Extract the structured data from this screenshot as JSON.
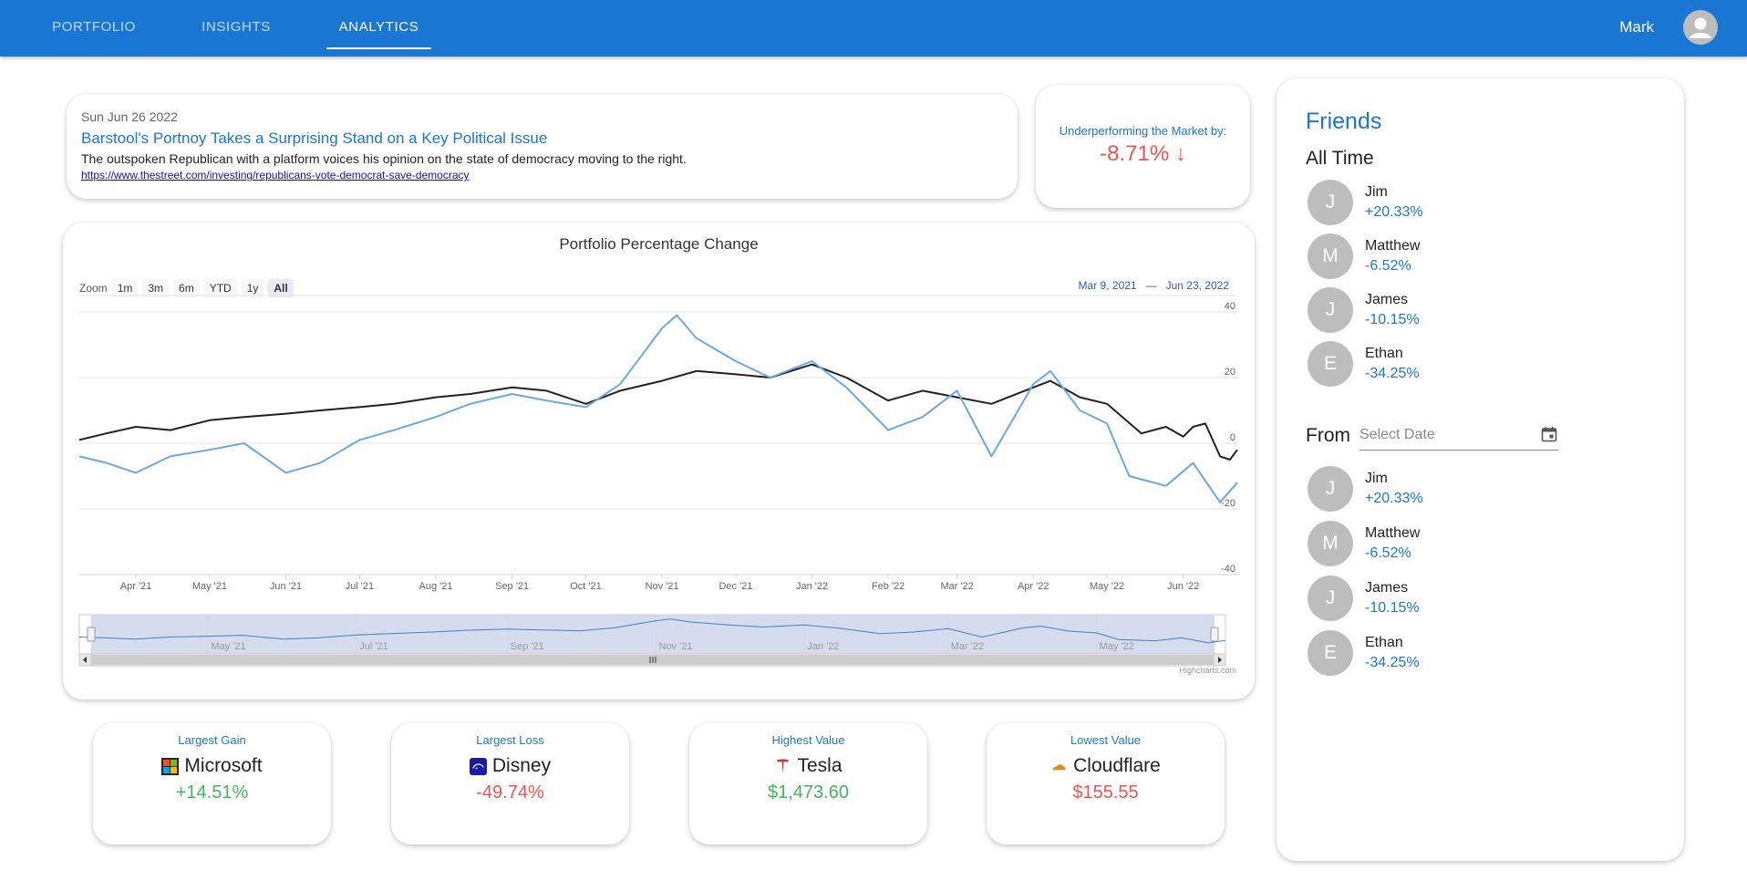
{
  "nav": {
    "tabs": [
      {
        "label": "PORTFOLIO"
      },
      {
        "label": "INSIGHTS"
      },
      {
        "label": "ANALYTICS"
      }
    ],
    "active": "ANALYTICS",
    "user_name": "Mark"
  },
  "news": {
    "date": "Sun Jun 26 2022",
    "title": "Barstool's Portnoy Takes a Surprising Stand on a Key Political Issue",
    "description": "The outspoken Republican with a platform voices his opinion on the state of democracy moving to the right.",
    "url": "https://www.thestreet.com/investing/republicans-vote-democrat-save-democracy"
  },
  "underperform": {
    "label": "Underperforming the Market by:",
    "value": "-8.71%",
    "arrow": "↓"
  },
  "chart": {
    "zoom_label": "Zoom",
    "zoom_buttons": [
      "1m",
      "3m",
      "6m",
      "YTD",
      "1y",
      "All"
    ],
    "zoom_selected": "All",
    "range_from": "Mar 9, 2021",
    "range_to": "Jun 23, 2022",
    "credits": "Highcharts.com"
  },
  "chart_data": {
    "type": "line",
    "title": "Portfolio Percentage Change",
    "x_tick_labels": [
      "Apr '21",
      "May '21",
      "Jun '21",
      "Jul '21",
      "Aug '21",
      "Sep '21",
      "Oct '21",
      "Nov '21",
      "Dec '21",
      "Jan '22",
      "Feb '22",
      "Mar '22",
      "Apr '22",
      "May '22",
      "Jun '22"
    ],
    "navigator_tick_labels": [
      "May '21",
      "Jul '21",
      "Sep '21",
      "Nov '21",
      "Jan '22",
      "Mar '22",
      "May '22"
    ],
    "y_ticks": [
      40,
      20,
      0,
      -20,
      -40
    ],
    "ylim": [
      -40,
      45
    ],
    "xlim": [
      "2021-03-09",
      "2022-06-23"
    ],
    "grid": true,
    "series": [
      {
        "color": "#222222",
        "points": [
          [
            "2021-03-09",
            1
          ],
          [
            "2021-03-20",
            3
          ],
          [
            "2021-04-01",
            5
          ],
          [
            "2021-04-15",
            4
          ],
          [
            "2021-05-01",
            7
          ],
          [
            "2021-05-15",
            8
          ],
          [
            "2021-06-01",
            9
          ],
          [
            "2021-06-15",
            10
          ],
          [
            "2021-07-01",
            11
          ],
          [
            "2021-07-15",
            12
          ],
          [
            "2021-08-01",
            14
          ],
          [
            "2021-08-15",
            15
          ],
          [
            "2021-09-01",
            17
          ],
          [
            "2021-09-15",
            16
          ],
          [
            "2021-10-01",
            12
          ],
          [
            "2021-10-15",
            16
          ],
          [
            "2021-11-01",
            19
          ],
          [
            "2021-11-15",
            22
          ],
          [
            "2021-12-01",
            21
          ],
          [
            "2021-12-15",
            20
          ],
          [
            "2022-01-01",
            24
          ],
          [
            "2022-01-15",
            20
          ],
          [
            "2022-02-01",
            13
          ],
          [
            "2022-02-15",
            16
          ],
          [
            "2022-03-01",
            14
          ],
          [
            "2022-03-15",
            12
          ],
          [
            "2022-04-01",
            17
          ],
          [
            "2022-04-08",
            19
          ],
          [
            "2022-04-20",
            14
          ],
          [
            "2022-05-01",
            12
          ],
          [
            "2022-05-15",
            3
          ],
          [
            "2022-05-25",
            5
          ],
          [
            "2022-06-01",
            2
          ],
          [
            "2022-06-05",
            5
          ],
          [
            "2022-06-10",
            6
          ],
          [
            "2022-06-16",
            -4
          ],
          [
            "2022-06-20",
            -5
          ],
          [
            "2022-06-23",
            -2
          ]
        ]
      },
      {
        "color": "#6ba8e3",
        "points": [
          [
            "2021-03-09",
            -4
          ],
          [
            "2021-03-20",
            -6
          ],
          [
            "2021-04-01",
            -9
          ],
          [
            "2021-04-15",
            -4
          ],
          [
            "2021-05-01",
            -2
          ],
          [
            "2021-05-15",
            0
          ],
          [
            "2021-06-01",
            -9
          ],
          [
            "2021-06-15",
            -6
          ],
          [
            "2021-07-01",
            1
          ],
          [
            "2021-07-15",
            4
          ],
          [
            "2021-08-01",
            8
          ],
          [
            "2021-08-15",
            12
          ],
          [
            "2021-09-01",
            15
          ],
          [
            "2021-09-15",
            13
          ],
          [
            "2021-10-01",
            11
          ],
          [
            "2021-10-15",
            18
          ],
          [
            "2021-11-01",
            35
          ],
          [
            "2021-11-07",
            39
          ],
          [
            "2021-11-15",
            32
          ],
          [
            "2021-12-01",
            25
          ],
          [
            "2021-12-15",
            20
          ],
          [
            "2022-01-01",
            25
          ],
          [
            "2022-01-15",
            17
          ],
          [
            "2022-02-01",
            4
          ],
          [
            "2022-02-15",
            8
          ],
          [
            "2022-03-01",
            16
          ],
          [
            "2022-03-15",
            -4
          ],
          [
            "2022-04-01",
            18
          ],
          [
            "2022-04-08",
            22
          ],
          [
            "2022-04-20",
            10
          ],
          [
            "2022-05-01",
            6
          ],
          [
            "2022-05-10",
            -10
          ],
          [
            "2022-05-25",
            -13
          ],
          [
            "2022-06-05",
            -6
          ],
          [
            "2022-06-16",
            -18
          ],
          [
            "2022-06-23",
            -12
          ]
        ]
      }
    ]
  },
  "stats": [
    {
      "label": "Largest Gain",
      "name": "Microsoft",
      "value": "+14.51%",
      "tone": "pos",
      "icon": "microsoft-icon"
    },
    {
      "label": "Largest Loss",
      "name": "Disney",
      "value": "-49.74%",
      "tone": "neg",
      "icon": "disney-icon"
    },
    {
      "label": "Highest Value",
      "name": "Tesla",
      "value": "$1,473.60",
      "tone": "pos",
      "icon": "tesla-icon"
    },
    {
      "label": "Lowest Value",
      "name": "Cloudflare",
      "value": "$155.55",
      "tone": "neg",
      "icon": "cloudflare-icon"
    }
  ],
  "friends": {
    "title": "Friends",
    "all_time_label": "All Time",
    "all_time": [
      {
        "initial": "J",
        "name": "Jim",
        "pct": "+20.33%"
      },
      {
        "initial": "M",
        "name": "Matthew",
        "pct": "-6.52%"
      },
      {
        "initial": "J",
        "name": "James",
        "pct": "-10.15%"
      },
      {
        "initial": "E",
        "name": "Ethan",
        "pct": "-34.25%"
      }
    ],
    "from_label": "From",
    "date_placeholder": "Select Date",
    "from_list": [
      {
        "initial": "J",
        "name": "Jim",
        "pct": "+20.33%"
      },
      {
        "initial": "M",
        "name": "Matthew",
        "pct": "-6.52%"
      },
      {
        "initial": "J",
        "name": "James",
        "pct": "-10.15%"
      },
      {
        "initial": "E",
        "name": "Ethan",
        "pct": "-34.25%"
      }
    ]
  },
  "colors": {
    "brand": "#1976d2",
    "positive": "#43b75a",
    "negative": "#ef5350",
    "series_dark": "#222222",
    "series_light": "#6ba8e3"
  }
}
